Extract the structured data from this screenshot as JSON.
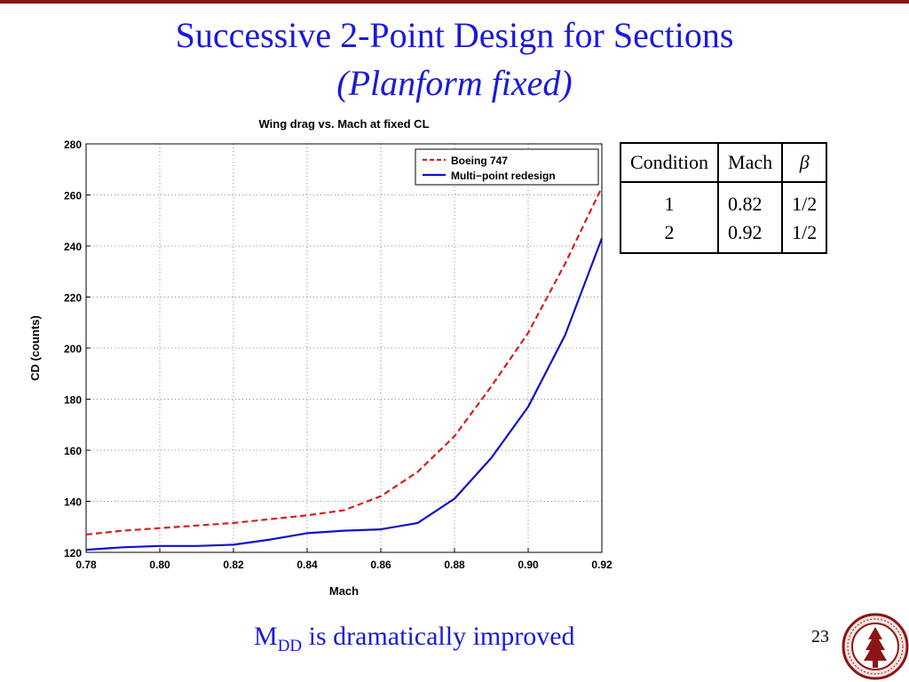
{
  "slide": {
    "title": "Successive 2-Point Design for Sections",
    "subtitle": "(Planform fixed)",
    "footer_prefix": "M",
    "footer_sub": "DD",
    "footer_suffix": " is dramatically improved",
    "page_number": "23",
    "seal_text": "LELAND STANFORD JUNIOR UNIVERSITY"
  },
  "colors": {
    "title_blue": "#1a1ad9",
    "accent_red": "#8c1515"
  },
  "table": {
    "headers": [
      "Condition",
      "Mach",
      "β"
    ],
    "rows": [
      [
        "1",
        "0.82",
        "1/2"
      ],
      [
        "2",
        "0.92",
        "1/2"
      ]
    ]
  },
  "chart_data": {
    "type": "line",
    "title": "Wing drag vs. Mach at fixed CL",
    "xlabel": "Mach",
    "ylabel": "CD (counts)",
    "xlim": [
      0.78,
      0.92
    ],
    "ylim": [
      120,
      280
    ],
    "xticks": [
      "0.78",
      "0.80",
      "0.82",
      "0.84",
      "0.86",
      "0.88",
      "0.90",
      "0.92"
    ],
    "yticks": [
      "120",
      "140",
      "160",
      "180",
      "200",
      "220",
      "240",
      "260",
      "280"
    ],
    "grid": true,
    "legend_position": "top-right",
    "x": [
      0.78,
      0.79,
      0.8,
      0.81,
      0.82,
      0.83,
      0.84,
      0.85,
      0.86,
      0.87,
      0.88,
      0.89,
      0.9,
      0.91,
      0.92
    ],
    "series": [
      {
        "name": "Boeing 747",
        "color": "#d42020",
        "style": "dashed",
        "values": [
          127,
          128.5,
          129.5,
          130.5,
          131.5,
          133,
          134.5,
          136.5,
          142,
          151.5,
          165.5,
          185,
          206,
          233,
          263
        ]
      },
      {
        "name": "Multi−point redesign",
        "color": "#1010cc",
        "style": "solid",
        "values": [
          121,
          122,
          122.5,
          122.5,
          123,
          125,
          127.5,
          128.5,
          129,
          131.5,
          141,
          157,
          177,
          205,
          243
        ]
      }
    ]
  }
}
